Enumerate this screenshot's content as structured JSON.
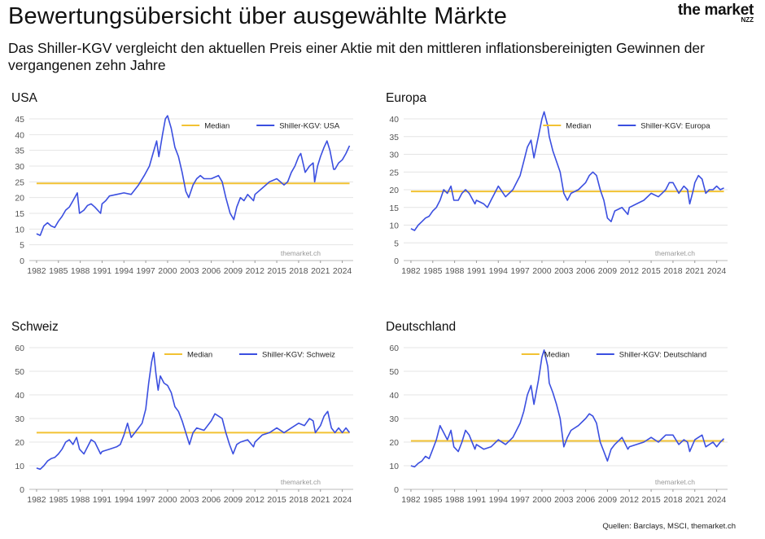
{
  "header": {
    "title": "Bewertungsübersicht über ausgewählte Märkte",
    "subtitle": "Das Shiller-KGV vergleicht den aktuellen Preis einer Aktie mit den mittleren inflationsbereinigten Gewinnen der vergangenen zehn Jahre",
    "brand_name": "the market",
    "brand_sub": "NZZ"
  },
  "sources": "Quellen: Barclays, MSCI, themarket.ch",
  "colors": {
    "shiller_line": "#3b4fe0",
    "median_line": "#f2c233",
    "grid": "#e4e4e4"
  },
  "chart_data": [
    {
      "type": "line",
      "title": "USA",
      "x_ticks": [
        "1982",
        "1985",
        "1988",
        "1991",
        "1994",
        "1997",
        "2000",
        "2003",
        "2006",
        "2009",
        "2012",
        "2015",
        "2018",
        "2021",
        "2024"
      ],
      "xlim": [
        1981.0,
        2025.5
      ],
      "ylim": [
        0,
        45
      ],
      "y_ticks": [
        0,
        5,
        10,
        15,
        20,
        25,
        30,
        35,
        40,
        45
      ],
      "grid": true,
      "legend": [
        "Median",
        "Shiller-KGV: USA"
      ],
      "legend_position": "top-right",
      "watermark": "themarket.ch",
      "median": 24.5,
      "series": [
        {
          "name": "Shiller-KGV: USA",
          "x": [
            1982,
            1982.5,
            1983,
            1983.5,
            1984,
            1984.5,
            1985,
            1985.5,
            1986,
            1986.5,
            1987,
            1987.6,
            1987.9,
            1988.5,
            1989,
            1989.5,
            1990,
            1990.8,
            1991,
            1991.5,
            1992,
            1993,
            1994,
            1995,
            1996,
            1996.8,
            1997.5,
            1998,
            1998.5,
            1998.8,
            1999.3,
            1999.7,
            2000,
            2000.5,
            2001,
            2001.5,
            2002,
            2002.5,
            2002.9,
            2003.5,
            2004,
            2004.5,
            2005,
            2006,
            2007,
            2007.5,
            2008,
            2008.6,
            2009.1,
            2009.5,
            2010,
            2010.5,
            2011,
            2011.8,
            2012,
            2013,
            2014,
            2015,
            2016,
            2016.5,
            2017,
            2017.5,
            2018,
            2018.3,
            2018.9,
            2019.5,
            2020,
            2020.2,
            2020.6,
            2021,
            2021.5,
            2021.9,
            2022.3,
            2022.8,
            2023,
            2023.5,
            2024,
            2024.5,
            2025
          ],
          "y": [
            8.5,
            8,
            11,
            12,
            11,
            10.5,
            12.5,
            14,
            16,
            17,
            19,
            21.5,
            15,
            16,
            17.5,
            18,
            17,
            15,
            18,
            19,
            20.5,
            21,
            21.5,
            21,
            24,
            27,
            30,
            34,
            38,
            33,
            40,
            45,
            46,
            42,
            36,
            33,
            28,
            22,
            20,
            24,
            26,
            27,
            26,
            26,
            27,
            25,
            20,
            15,
            13,
            17,
            20,
            19,
            21,
            19,
            21,
            23,
            25,
            26,
            24,
            25,
            28,
            30,
            33,
            34,
            28,
            30,
            31,
            25,
            30,
            33,
            36,
            38,
            35,
            29,
            29,
            31,
            32,
            34,
            36.5
          ]
        }
      ]
    },
    {
      "type": "line",
      "title": "Europa",
      "x_ticks": [
        "1982",
        "1985",
        "1988",
        "1991",
        "1994",
        "1997",
        "2000",
        "2003",
        "2006",
        "2009",
        "2012",
        "2015",
        "2018",
        "2021",
        "2024"
      ],
      "xlim": [
        1981.0,
        2025.5
      ],
      "ylim": [
        0,
        40
      ],
      "y_ticks": [
        0,
        5,
        10,
        15,
        20,
        25,
        30,
        35,
        40
      ],
      "grid": true,
      "legend": [
        "Median",
        "Shiller-KGV: Europa"
      ],
      "legend_position": "top-right",
      "watermark": "themarket.ch",
      "median": 19.5,
      "series": [
        {
          "name": "Shiller-KGV: Europa",
          "x": [
            1982,
            1982.5,
            1983,
            1983.5,
            1984,
            1984.5,
            1985,
            1985.5,
            1986,
            1986.5,
            1987,
            1987.5,
            1987.9,
            1988.5,
            1989,
            1989.5,
            1990,
            1990.8,
            1991,
            1992,
            1992.5,
            1993,
            1993.5,
            1994,
            1995,
            1996,
            1997,
            1997.5,
            1998,
            1998.5,
            1998.9,
            1999.5,
            2000,
            2000.3,
            2000.8,
            2001,
            2001.5,
            2002,
            2002.5,
            2003,
            2003.5,
            2004,
            2005,
            2006,
            2006.5,
            2007,
            2007.5,
            2008,
            2008.5,
            2009,
            2009.5,
            2010,
            2011,
            2011.8,
            2012,
            2013,
            2014,
            2015,
            2016,
            2016.5,
            2017,
            2017.5,
            2018,
            2018.8,
            2019.5,
            2020,
            2020.3,
            2020.8,
            2021,
            2021.5,
            2022,
            2022.5,
            2023,
            2023.5,
            2024,
            2024.5,
            2025
          ],
          "y": [
            9,
            8.5,
            10,
            11,
            12,
            12.5,
            14,
            15,
            17,
            20,
            19,
            21,
            17,
            17,
            19,
            20,
            19,
            16,
            17,
            16,
            15,
            17,
            19,
            21,
            18,
            20,
            24,
            28,
            32,
            34,
            29,
            35,
            40,
            42,
            38,
            35,
            31,
            28,
            25,
            19,
            17,
            19,
            20,
            22,
            24,
            25,
            24,
            20,
            17,
            12,
            11,
            14,
            15,
            13,
            15,
            16,
            17,
            19,
            18,
            19,
            20,
            22,
            22,
            19,
            21,
            20,
            16,
            20,
            22,
            24,
            23,
            19,
            20,
            20,
            21,
            20,
            20.5
          ]
        }
      ]
    },
    {
      "type": "line",
      "title": "Schweiz",
      "x_ticks": [
        "1982",
        "1985",
        "1988",
        "1991",
        "1994",
        "1997",
        "2000",
        "2003",
        "2006",
        "2009",
        "2012",
        "2015",
        "2018",
        "2021",
        "2024"
      ],
      "xlim": [
        1981.0,
        2025.5
      ],
      "ylim": [
        0,
        60
      ],
      "y_ticks": [
        0,
        10,
        20,
        30,
        40,
        50,
        60
      ],
      "grid": true,
      "legend": [
        "Median",
        "Shiller-KGV: Schweiz"
      ],
      "legend_position": "top-right",
      "watermark": "themarket.ch",
      "median": 24.0,
      "series": [
        {
          "name": "Shiller-KGV: Schweiz",
          "x": [
            1982,
            1982.5,
            1983,
            1983.5,
            1984,
            1984.5,
            1985,
            1985.5,
            1986,
            1986.5,
            1987,
            1987.5,
            1987.9,
            1988.5,
            1989,
            1989.5,
            1990,
            1990.8,
            1991,
            1992,
            1993,
            1993.5,
            1994,
            1994.5,
            1995,
            1996,
            1996.5,
            1997,
            1997.4,
            1997.8,
            1998.1,
            1998.4,
            1998.7,
            1999,
            1999.5,
            2000,
            2000.5,
            2001,
            2001.5,
            2002,
            2002.5,
            2003,
            2003.5,
            2004,
            2005,
            2006,
            2006.5,
            2007,
            2007.5,
            2008,
            2008.5,
            2009,
            2009.5,
            2010,
            2011,
            2011.8,
            2012,
            2013,
            2014,
            2015,
            2016,
            2017,
            2018,
            2018.8,
            2019.5,
            2020,
            2020.3,
            2021,
            2021.5,
            2022,
            2022.5,
            2023,
            2023.5,
            2024,
            2024.5,
            2025
          ],
          "y": [
            9,
            8.5,
            10,
            12,
            13,
            13.5,
            15,
            17,
            20,
            21,
            19,
            22,
            17,
            15,
            18,
            21,
            20,
            15,
            16,
            17,
            18,
            19,
            23,
            28,
            22,
            26,
            28,
            34,
            45,
            54,
            58,
            49,
            42,
            48,
            45,
            44,
            41,
            35,
            33,
            29,
            24,
            19,
            24,
            26,
            25,
            29,
            32,
            31,
            30,
            24,
            19,
            15,
            19,
            20,
            21,
            18,
            20,
            23,
            24,
            26,
            24,
            26,
            28,
            27,
            30,
            29,
            24,
            27,
            31,
            33,
            26,
            24,
            26,
            24,
            26,
            24
          ]
        }
      ]
    },
    {
      "type": "line",
      "title": "Deutschland",
      "x_ticks": [
        "1982",
        "1985",
        "1988",
        "1991",
        "1994",
        "1997",
        "2000",
        "2003",
        "2006",
        "2009",
        "2012",
        "2015",
        "2018",
        "2021",
        "2024"
      ],
      "xlim": [
        1981.0,
        2025.5
      ],
      "ylim": [
        0,
        60
      ],
      "y_ticks": [
        0,
        10,
        20,
        30,
        40,
        50,
        60
      ],
      "grid": true,
      "legend": [
        "Median",
        "Shiller-KGV: Deutschland"
      ],
      "legend_position": "top-right",
      "watermark": "themarket.ch",
      "median": 20.5,
      "series": [
        {
          "name": "Shiller-KGV: Deutschland",
          "x": [
            1982,
            1982.5,
            1983,
            1983.5,
            1984,
            1984.5,
            1985,
            1985.5,
            1986,
            1986.5,
            1987,
            1987.5,
            1987.9,
            1988.5,
            1989,
            1989.5,
            1990,
            1990.8,
            1991,
            1992,
            1993,
            1994,
            1995,
            1996,
            1997,
            1997.5,
            1998,
            1998.5,
            1998.9,
            1999.5,
            2000,
            2000.3,
            2000.8,
            2001,
            2001.5,
            2002,
            2002.5,
            2003,
            2003.5,
            2004,
            2005,
            2006,
            2006.5,
            2007,
            2007.5,
            2008,
            2008.5,
            2009,
            2009.5,
            2010,
            2011,
            2011.8,
            2012,
            2013,
            2014,
            2015,
            2016,
            2017,
            2018,
            2018.8,
            2019.5,
            2020,
            2020.3,
            2021,
            2021.5,
            2022,
            2022.5,
            2023,
            2023.5,
            2024,
            2024.5,
            2025
          ],
          "y": [
            10,
            9.5,
            11,
            12,
            14,
            13,
            17,
            21,
            27,
            24,
            21,
            25,
            18,
            16,
            20,
            25,
            23,
            17,
            19,
            17,
            18,
            21,
            19,
            22,
            28,
            33,
            40,
            44,
            36,
            46,
            56,
            59,
            52,
            45,
            41,
            36,
            30,
            18,
            22,
            25,
            27,
            30,
            32,
            31,
            28,
            20,
            16,
            12,
            17,
            19,
            22,
            17,
            18,
            19,
            20,
            22,
            20,
            23,
            23,
            19,
            21,
            20,
            16,
            21,
            22,
            23,
            18,
            19,
            20,
            18,
            20,
            21.5
          ]
        }
      ]
    }
  ]
}
